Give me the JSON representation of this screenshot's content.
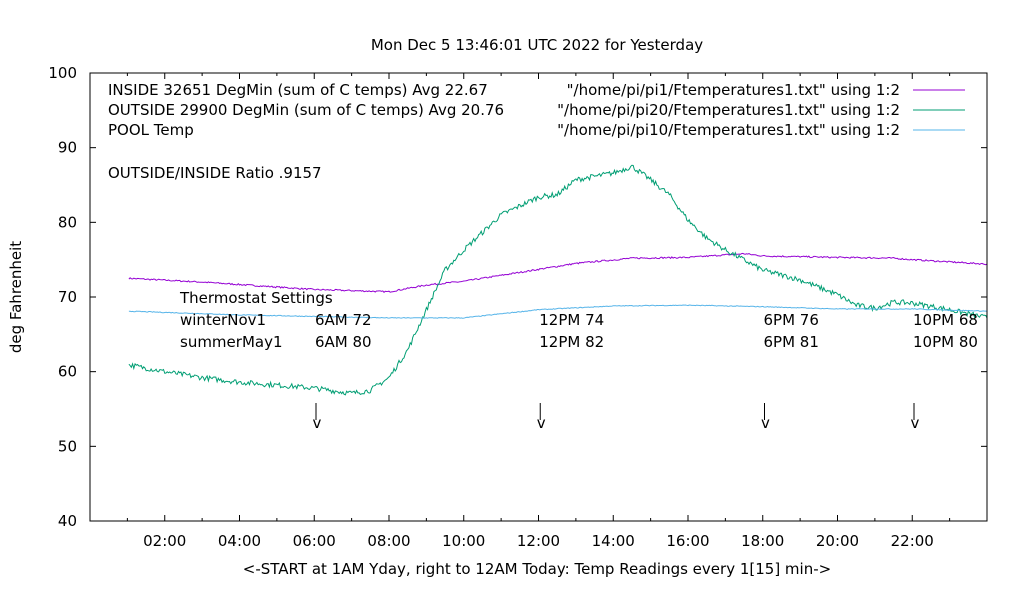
{
  "chart_data": {
    "type": "line",
    "title": "Mon Dec  5 13:46:01 UTC 2022 for Yesterday",
    "xlabel": "<-START at 1AM Yday, right to 12AM Today:  Temp Readings every 1[15] min->",
    "ylabel": "deg Fahrenheit",
    "xlim": [
      0,
      24
    ],
    "ylim": [
      40,
      100
    ],
    "x_ticks": [
      {
        "v": 2,
        "label": "02:00"
      },
      {
        "v": 4,
        "label": "04:00"
      },
      {
        "v": 6,
        "label": "06:00"
      },
      {
        "v": 8,
        "label": "08:00"
      },
      {
        "v": 10,
        "label": "10:00"
      },
      {
        "v": 12,
        "label": "12:00"
      },
      {
        "v": 14,
        "label": "14:00"
      },
      {
        "v": 16,
        "label": "16:00"
      },
      {
        "v": 18,
        "label": "18:00"
      },
      {
        "v": 20,
        "label": "20:00"
      },
      {
        "v": 22,
        "label": "22:00"
      }
    ],
    "y_ticks": [
      40,
      50,
      60,
      70,
      80,
      90,
      100
    ],
    "grid": false,
    "legend_placement": "top-right",
    "series": [
      {
        "name": "INSIDE 32651 DegMin (sum of C temps) Avg 22.67",
        "legend_suffix": "\"/home/pi/pi1/Ftemperatures1.txt\" using 1:2",
        "color": "#9400d3",
        "x": [
          1.04,
          3,
          6,
          8,
          9,
          10,
          12,
          13,
          14.5,
          16,
          17.5,
          18,
          20,
          21.5,
          22,
          24
        ],
        "y": [
          72.5,
          72.0,
          71.0,
          70.7,
          71.6,
          72.1,
          73.7,
          74.5,
          75.2,
          75.3,
          75.8,
          75.5,
          75.3,
          75.2,
          75.0,
          74.4
        ]
      },
      {
        "name": "OUTSIDE 29900 DegMin (sum of C temps) Avg 20.76",
        "legend_suffix": "\"/home/pi/pi20/Ftemperatures1.txt\" using 1:2",
        "color": "#009e73",
        "x": [
          1.04,
          2,
          3,
          4,
          5,
          6,
          7,
          7.5,
          8,
          8.5,
          9,
          9.5,
          10,
          11,
          12,
          12.5,
          13,
          14,
          14.5,
          15,
          15.5,
          16,
          16.5,
          17,
          18,
          19,
          20,
          20.5,
          21,
          21.5,
          22,
          23,
          24
        ],
        "y": [
          60.9,
          60.0,
          59.2,
          58.6,
          58.2,
          57.8,
          57.1,
          57.5,
          59.2,
          62.9,
          68.3,
          73.6,
          76.3,
          81.0,
          83.4,
          83.7,
          85.7,
          86.6,
          87.5,
          85.7,
          83.7,
          80.3,
          77.9,
          76.3,
          73.6,
          72.3,
          70.3,
          68.9,
          68.5,
          69.3,
          69.2,
          68.3,
          67.2
        ]
      },
      {
        "name": "POOL Temp",
        "legend_suffix": "\"/home/pi/pi10/Ftemperatures1.txt\" using 1:2",
        "color": "#56b4e9",
        "x": [
          1.04,
          4,
          8,
          10,
          12,
          14,
          16,
          18,
          20,
          22,
          24
        ],
        "y": [
          68.1,
          67.6,
          67.2,
          67.2,
          68.3,
          68.8,
          68.9,
          68.7,
          68.4,
          68.4,
          68.1
        ]
      }
    ],
    "annotations": {
      "ratio": "OUTSIDE/INSIDE Ratio .9157",
      "thermostat_title": "Thermostat Settings",
      "rows": [
        {
          "label": "winterNov1",
          "values": [
            "6AM 72",
            "12PM 74",
            "6PM 76",
            "10PM 68"
          ]
        },
        {
          "label": "summerMay1",
          "values": [
            "6AM 80",
            "12PM 82",
            "6PM 81",
            "10PM 80"
          ]
        }
      ],
      "arrow_hours": [
        6.1,
        12.1,
        18.1,
        22.1
      ],
      "arrow_glyph": "v"
    }
  }
}
